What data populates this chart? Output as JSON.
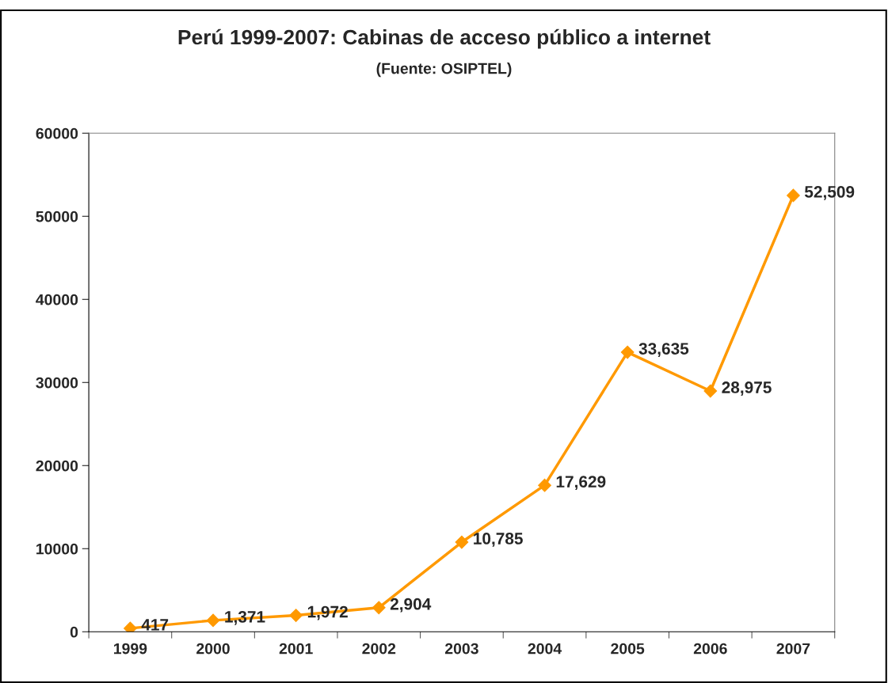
{
  "chart_data": {
    "type": "line",
    "title": "Perú 1999-2007: Cabinas de acceso público a internet",
    "subtitle": "(Fuente: OSIPTEL)",
    "categories": [
      "1999",
      "2000",
      "2001",
      "2002",
      "2003",
      "2004",
      "2005",
      "2006",
      "2007"
    ],
    "series": [
      {
        "color": "#ff9900",
        "values": [
          417,
          1371,
          1972,
          2904,
          10785,
          17629,
          33635,
          28975,
          52509
        ],
        "value_labels": [
          "417",
          "1,371",
          "1,972",
          "2,904",
          "10,785",
          "17,629",
          "33,635",
          "28,975",
          "52,509"
        ]
      }
    ],
    "ylim": [
      0,
      60000
    ],
    "yticks": [
      0,
      10000,
      20000,
      30000,
      40000,
      50000,
      60000
    ],
    "marker": "diamond",
    "line_style": "solid",
    "grid": false
  }
}
